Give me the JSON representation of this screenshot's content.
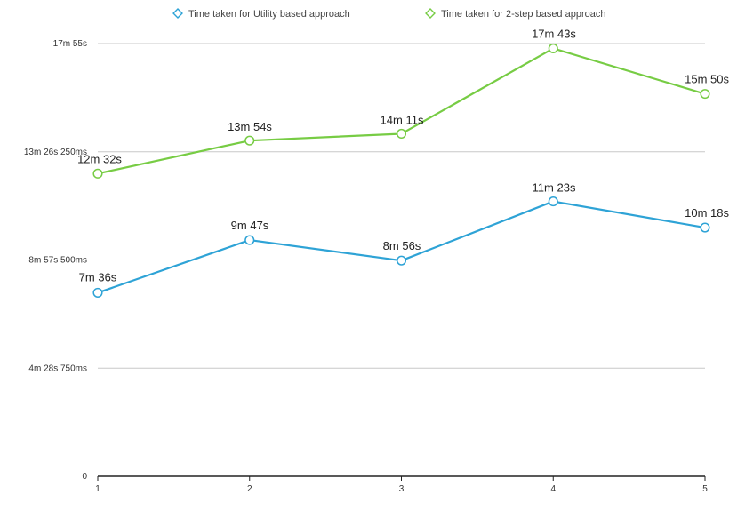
{
  "chart_data": {
    "type": "line",
    "title": "",
    "xlabel": "",
    "ylabel": "",
    "x": [
      1,
      2,
      3,
      4,
      5
    ],
    "x_tick_labels": [
      "1",
      "2",
      "3",
      "4",
      "5"
    ],
    "ylim_seconds": [
      0,
      1075
    ],
    "y_ticks_seconds": [
      0,
      268.75,
      537.5,
      806.25,
      1075
    ],
    "y_tick_labels": [
      "0",
      "4m 28s 750ms",
      "8m 57s 500ms",
      "13m 26s 250ms",
      "17m 55s"
    ],
    "grid": true,
    "legend_position": "top",
    "series": [
      {
        "name": "Time taken for Utility based approach",
        "color": "#2ea3d6",
        "values_seconds": [
          456,
          587,
          536,
          683,
          618
        ],
        "labels": [
          "7m 36s",
          "9m 47s",
          "8m 56s",
          "11m 23s",
          "10m 18s"
        ]
      },
      {
        "name": "Time taken for 2-step based approach",
        "color": "#77cc44",
        "values_seconds": [
          752,
          834,
          851,
          1063,
          950
        ],
        "labels": [
          "12m 32s",
          "13m 54s",
          "14m 11s",
          "17m 43s",
          "15m 50s"
        ]
      }
    ]
  }
}
